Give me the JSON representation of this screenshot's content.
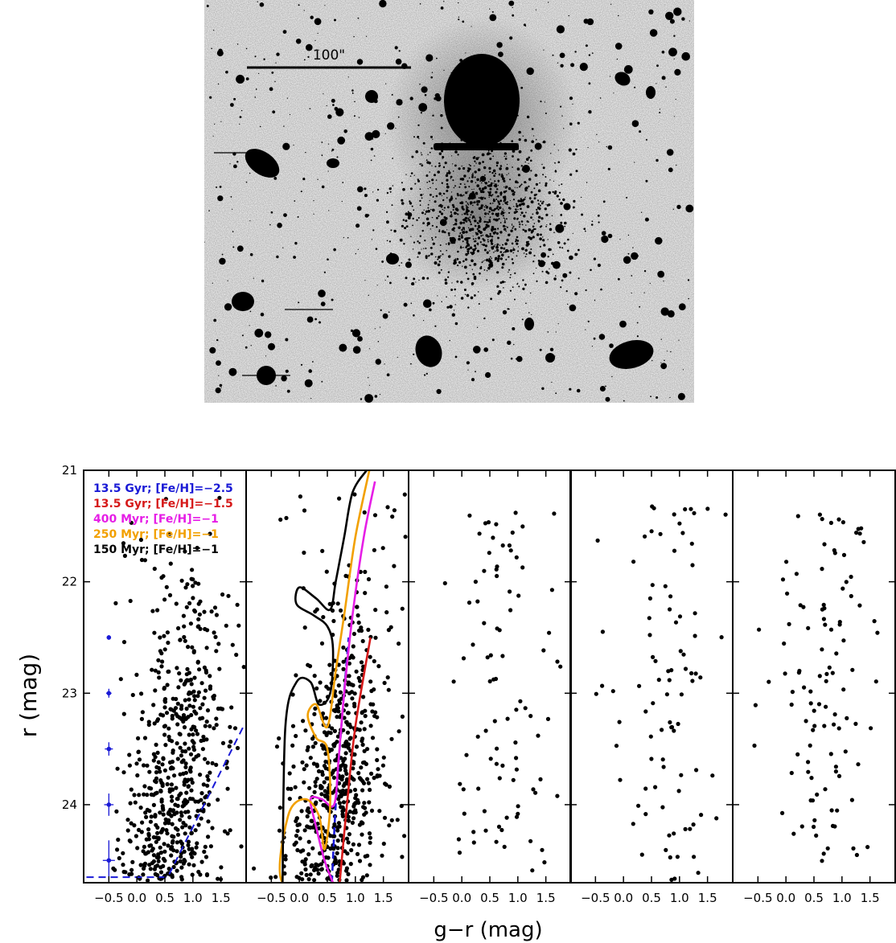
{
  "image": {
    "scale_bar_label": "100\""
  },
  "chart_data": {
    "type": "scatter",
    "ylabel": "r (mag)",
    "xlabel": "g−r (mag)",
    "ylim": [
      24.7,
      21.0
    ],
    "xlim": [
      -0.95,
      1.95
    ],
    "yticks": [
      21,
      22,
      23,
      24
    ],
    "xticks": [
      -0.5,
      0.0,
      0.5,
      1.0,
      1.5
    ],
    "xtick_labels": [
      "−0.5",
      "0.0",
      "0.5",
      "1.0",
      "1.5"
    ],
    "legend": [
      {
        "label": "13.5 Gyr; [Fe/H]=−2.5",
        "color": "#1a1ad6"
      },
      {
        "label": "13.5 Gyr; [Fe/H]=−1.5",
        "color": "#d61a1a"
      },
      {
        "label": "400 Myr; [Fe/H]=−1",
        "color": "#e61ee6"
      },
      {
        "label": "250 Myr; [Fe/H]=−1",
        "color": "#f2a000"
      },
      {
        "label": "150 Myr; [Fe/H]=−1",
        "color": "#000000"
      }
    ],
    "panels": [
      {
        "panel": 1,
        "stars": 620,
        "error_bars": [
          {
            "r": 22.5,
            "color_err": 0.03,
            "mag_err": 0.02
          },
          {
            "r": 23.0,
            "color_err": 0.04,
            "mag_err": 0.04
          },
          {
            "r": 23.5,
            "color_err": 0.06,
            "mag_err": 0.06
          },
          {
            "r": 24.0,
            "color_err": 0.07,
            "mag_err": 0.1
          },
          {
            "r": 24.5,
            "color_err": 0.09,
            "mag_err": 0.18
          }
        ],
        "completeness_limit": [
          [
            -0.9,
            24.65
          ],
          [
            0.55,
            24.65
          ],
          [
            1.9,
            23.3
          ]
        ]
      },
      {
        "panel": 2,
        "stars": 620,
        "isochrones": [
          {
            "name": "13.5 Gyr; [Fe/H]=−2.5",
            "color": "#1a1ad6",
            "dashed": true,
            "points": [
              [
                0.58,
                24.7
              ],
              [
                0.65,
                24.0
              ],
              [
                0.75,
                23.3
              ],
              [
                0.88,
                22.5
              ]
            ]
          },
          {
            "name": "13.5 Gyr; [Fe/H]=−1.5",
            "color": "#d61a1a",
            "dashed": false,
            "points": [
              [
                0.72,
                24.7
              ],
              [
                0.85,
                24.0
              ],
              [
                1.0,
                23.3
              ],
              [
                1.27,
                22.5
              ]
            ]
          },
          {
            "name": "400 Myr; [Fe/H]=−1",
            "color": "#e61ee6",
            "dashed": false,
            "points": [
              [
                0.6,
                24.7
              ],
              [
                0.45,
                24.5
              ],
              [
                0.3,
                24.2
              ],
              [
                0.2,
                23.95
              ],
              [
                0.4,
                23.95
              ],
              [
                0.62,
                24.0
              ],
              [
                0.7,
                23.6
              ],
              [
                0.8,
                23.0
              ],
              [
                0.95,
                22.3
              ],
              [
                1.15,
                21.6
              ],
              [
                1.35,
                21.1
              ]
            ]
          },
          {
            "name": "250 Myr; [Fe/H]=−1",
            "color": "#f2a000",
            "dashed": false,
            "points": [
              [
                0.6,
                24.7
              ],
              [
                -0.3,
                24.7
              ],
              [
                -0.2,
                24.1
              ],
              [
                0.1,
                23.95
              ],
              [
                0.35,
                24.1
              ],
              [
                0.45,
                24.4
              ],
              [
                0.55,
                24.0
              ],
              [
                0.5,
                23.5
              ],
              [
                0.3,
                23.4
              ],
              [
                0.15,
                23.2
              ],
              [
                0.3,
                23.1
              ],
              [
                0.5,
                23.3
              ],
              [
                0.65,
                22.8
              ],
              [
                0.8,
                22.3
              ],
              [
                1.0,
                21.6
              ],
              [
                1.25,
                21.0
              ]
            ]
          },
          {
            "name": "150 Myr; [Fe/H]=−1",
            "color": "#000000",
            "dashed": false,
            "points": [
              [
                -0.3,
                24.7
              ],
              [
                -0.25,
                23.3
              ],
              [
                -0.05,
                22.9
              ],
              [
                0.2,
                22.9
              ],
              [
                0.35,
                23.1
              ],
              [
                0.55,
                23.0
              ],
              [
                0.6,
                22.6
              ],
              [
                0.5,
                22.4
              ],
              [
                0.25,
                22.3
              ],
              [
                -0.05,
                22.2
              ],
              [
                0.0,
                22.05
              ],
              [
                0.3,
                22.15
              ],
              [
                0.55,
                22.25
              ],
              [
                0.65,
                22.0
              ],
              [
                0.8,
                21.6
              ],
              [
                0.95,
                21.2
              ],
              [
                1.2,
                21.0
              ]
            ]
          }
        ]
      },
      {
        "panel": 3,
        "stars": 90
      },
      {
        "panel": 4,
        "stars": 90
      },
      {
        "panel": 5,
        "stars": 110
      }
    ]
  }
}
